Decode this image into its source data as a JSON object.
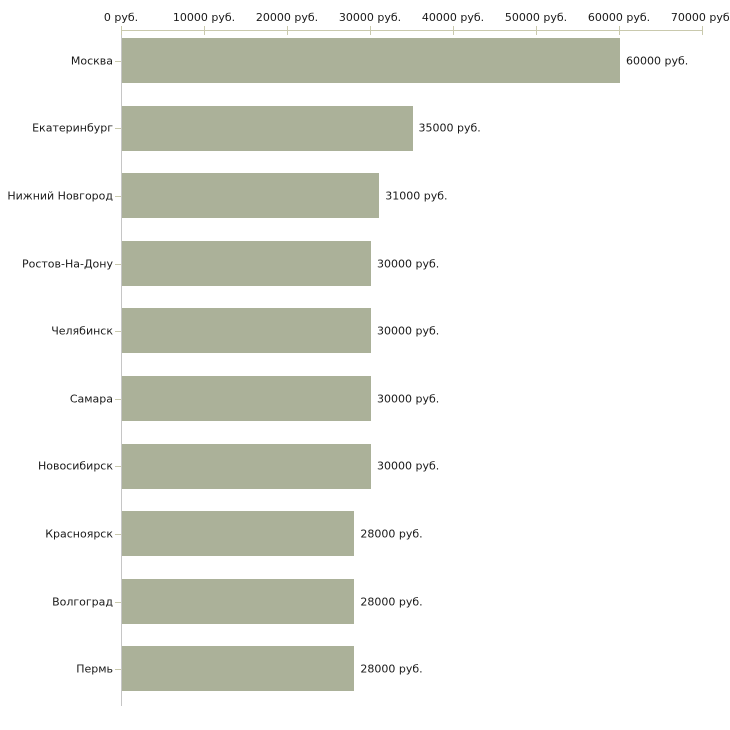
{
  "chart_data": {
    "type": "bar",
    "orientation": "horizontal",
    "title": "",
    "xlabel": "",
    "ylabel": "",
    "categories": [
      "Москва",
      "Екатеринбург",
      "Нижний Новгород",
      "Ростов-На-Дону",
      "Челябинск",
      "Самара",
      "Новосибирск",
      "Красноярск",
      "Волгоград",
      "Пермь"
    ],
    "values": [
      60000,
      35000,
      31000,
      30000,
      30000,
      30000,
      30000,
      28000,
      28000,
      28000
    ],
    "value_labels": [
      "60000 руб.",
      "35000 руб.",
      "31000 руб.",
      "30000 руб.",
      "30000 руб.",
      "30000 руб.",
      "30000 руб.",
      "28000 руб.",
      "28000 руб.",
      "28000 руб."
    ],
    "axis": {
      "position": "top",
      "min": 0,
      "max": 70000,
      "tick_values": [
        0,
        10000,
        20000,
        30000,
        40000,
        50000,
        60000,
        70000
      ],
      "tick_labels": [
        "0 руб.",
        "10000 руб.",
        "20000 руб.",
        "30000 руб.",
        "40000 руб.",
        "50000 руб.",
        "60000 руб.",
        "70000 руб."
      ]
    },
    "grid": false,
    "legend": false,
    "colors": {
      "bar": "#abb199",
      "axis_line": "#c9c9ad",
      "category_axis_line": "#c6c6c6",
      "text": "#1a1a1a",
      "background": "#ffffff"
    }
  }
}
